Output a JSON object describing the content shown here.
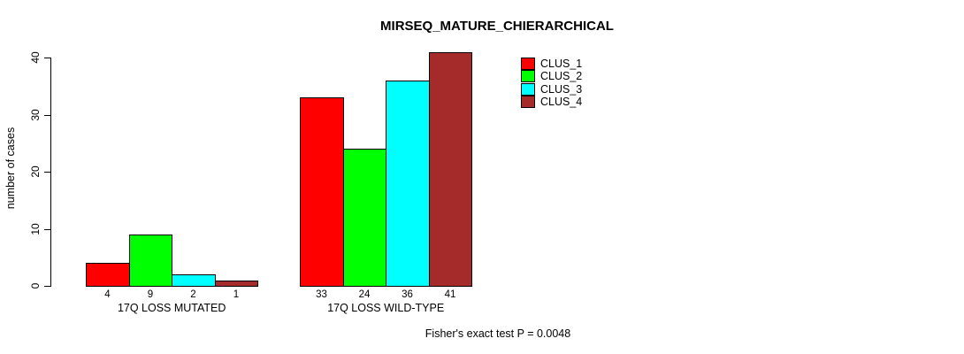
{
  "figure": {
    "background": "#FFFFFF"
  },
  "chart_data": {
    "type": "bar",
    "title": "MIRSEQ_MATURE_CHIERARCHICAL",
    "ylabel": "number of cases",
    "xlabel": "",
    "ylim": [
      0,
      40
    ],
    "yticks": [
      0,
      10,
      20,
      30,
      40
    ],
    "grid": false,
    "legend_position": "top-right",
    "bar_value_labels": true,
    "categories": [
      "17Q LOSS MUTATED",
      "17Q LOSS WILD-TYPE"
    ],
    "series": [
      {
        "name": "CLUS_1",
        "color": "#FF0000",
        "values": [
          4,
          33
        ]
      },
      {
        "name": "CLUS_2",
        "color": "#00FF00",
        "values": [
          9,
          24
        ]
      },
      {
        "name": "CLUS_3",
        "color": "#00FFFF",
        "values": [
          2,
          36
        ]
      },
      {
        "name": "CLUS_4",
        "color": "#A52A2A",
        "values": [
          1,
          41
        ]
      }
    ],
    "annotation": "Fisher's exact test P = 0.0048"
  }
}
